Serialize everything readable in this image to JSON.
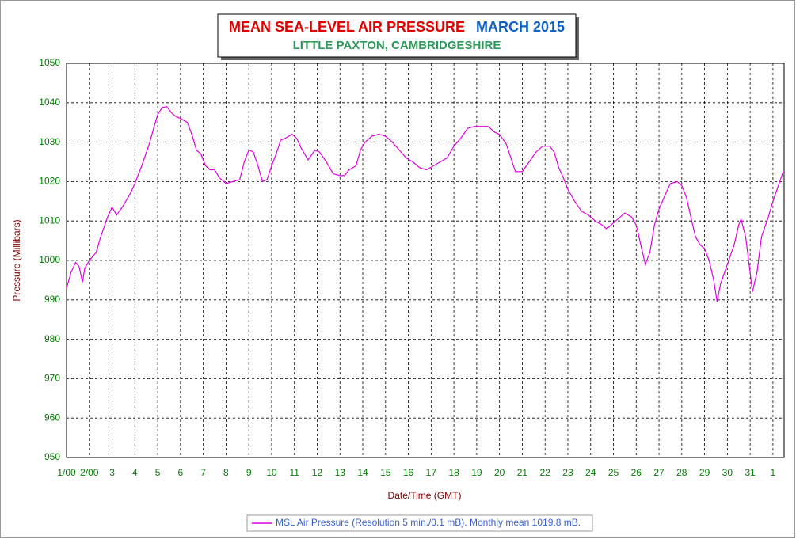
{
  "chart_data": {
    "type": "line",
    "title": "MEAN SEA-LEVEL AIR PRESSURE",
    "title_date": "MARCH 2015",
    "subtitle": "LITTLE PAXTON, CAMBRIDGESHIRE",
    "xlabel": "Date/Time (GMT)",
    "ylabel": "Pressure (Millibars)",
    "x": [
      1.0,
      1.2,
      1.4,
      1.55,
      1.7,
      1.8,
      2.0,
      2.3,
      2.5,
      2.8,
      3.0,
      3.2,
      3.5,
      3.8,
      4.0,
      4.3,
      4.6,
      4.8,
      5.0,
      5.2,
      5.4,
      5.6,
      5.8,
      6.0,
      6.3,
      6.5,
      6.7,
      6.9,
      7.1,
      7.3,
      7.5,
      7.7,
      8.0,
      8.3,
      8.6,
      8.8,
      9.0,
      9.2,
      9.4,
      9.6,
      9.8,
      10.0,
      10.2,
      10.4,
      10.6,
      10.9,
      11.1,
      11.3,
      11.6,
      11.9,
      12.1,
      12.4,
      12.7,
      13.0,
      13.2,
      13.4,
      13.7,
      13.9,
      14.1,
      14.4,
      14.7,
      15.0,
      15.3,
      15.6,
      15.9,
      16.2,
      16.5,
      16.8,
      17.1,
      17.4,
      17.7,
      18.0,
      18.3,
      18.6,
      18.9,
      19.2,
      19.5,
      19.8,
      20.0,
      20.3,
      20.5,
      20.7,
      21.0,
      21.3,
      21.6,
      21.9,
      22.2,
      22.4,
      22.6,
      22.8,
      23.0,
      23.3,
      23.6,
      23.9,
      24.2,
      24.5,
      24.7,
      25.0,
      25.3,
      25.5,
      25.8,
      26.0,
      26.2,
      26.4,
      26.6,
      26.8,
      27.0,
      27.3,
      27.5,
      27.8,
      28.0,
      28.2,
      28.4,
      28.6,
      28.8,
      29.0,
      29.2,
      29.4,
      29.55,
      29.7,
      30.0,
      30.3,
      30.5,
      30.6,
      30.8,
      31.0,
      31.1,
      31.3,
      31.5,
      31.8,
      32.0,
      32.3,
      32.45
    ],
    "series": [
      {
        "name": "MSL Air Pressure (Resolution 5 min./0.1 mB). Monthly mean 1019.8 mB.",
        "color": "#e000e0",
        "values": [
          993,
          997,
          999.5,
          998.5,
          994.5,
          998,
          1000,
          1002,
          1006,
          1011,
          1013.5,
          1011.5,
          1014,
          1017,
          1019.5,
          1024,
          1029,
          1033,
          1037,
          1038.8,
          1039,
          1037.5,
          1036.5,
          1036,
          1035,
          1032,
          1028,
          1027,
          1024,
          1023,
          1023,
          1021,
          1019.5,
          1020,
          1020.5,
          1025,
          1028,
          1027.5,
          1024,
          1020,
          1020.5,
          1024,
          1027,
          1030.5,
          1031,
          1032,
          1031,
          1028.5,
          1025.5,
          1028,
          1027.5,
          1025,
          1022,
          1021.5,
          1021.5,
          1023,
          1024,
          1028,
          1030,
          1031.5,
          1032,
          1031.5,
          1030,
          1028,
          1026,
          1025,
          1023.5,
          1023,
          1024,
          1025,
          1026,
          1029,
          1031,
          1033.5,
          1034,
          1034,
          1034,
          1032.5,
          1032,
          1029.5,
          1026,
          1022.5,
          1022.5,
          1025,
          1027.5,
          1029,
          1029,
          1027.5,
          1023.5,
          1021,
          1018,
          1015,
          1012.5,
          1011.5,
          1010,
          1009,
          1008,
          1009.5,
          1011,
          1012,
          1011,
          1009,
          1004,
          999,
          1002,
          1009,
          1013,
          1017,
          1019.5,
          1020,
          1019,
          1016,
          1011,
          1006,
          1004,
          1003,
          1000,
          995,
          989.5,
          994,
          999,
          1004,
          1009,
          1010.5,
          1006,
          997,
          992,
          997,
          1006,
          1011,
          1015,
          1020,
          1022.5
        ]
      }
    ],
    "xlim": [
      1,
      32.49
    ],
    "xticks": [
      {
        "value": 1,
        "label": "1/00"
      },
      {
        "value": 2,
        "label": "2/00"
      },
      3,
      4,
      5,
      6,
      7,
      8,
      9,
      10,
      11,
      12,
      13,
      14,
      15,
      16,
      17,
      18,
      19,
      20,
      21,
      22,
      23,
      24,
      25,
      26,
      27,
      28,
      29,
      30,
      31,
      {
        "value": 32,
        "label": "1"
      }
    ],
    "ylim": [
      950,
      1050
    ],
    "yticks": [
      950,
      960,
      970,
      980,
      990,
      1000,
      1010,
      1020,
      1030,
      1040,
      1050
    ],
    "grid": true
  }
}
